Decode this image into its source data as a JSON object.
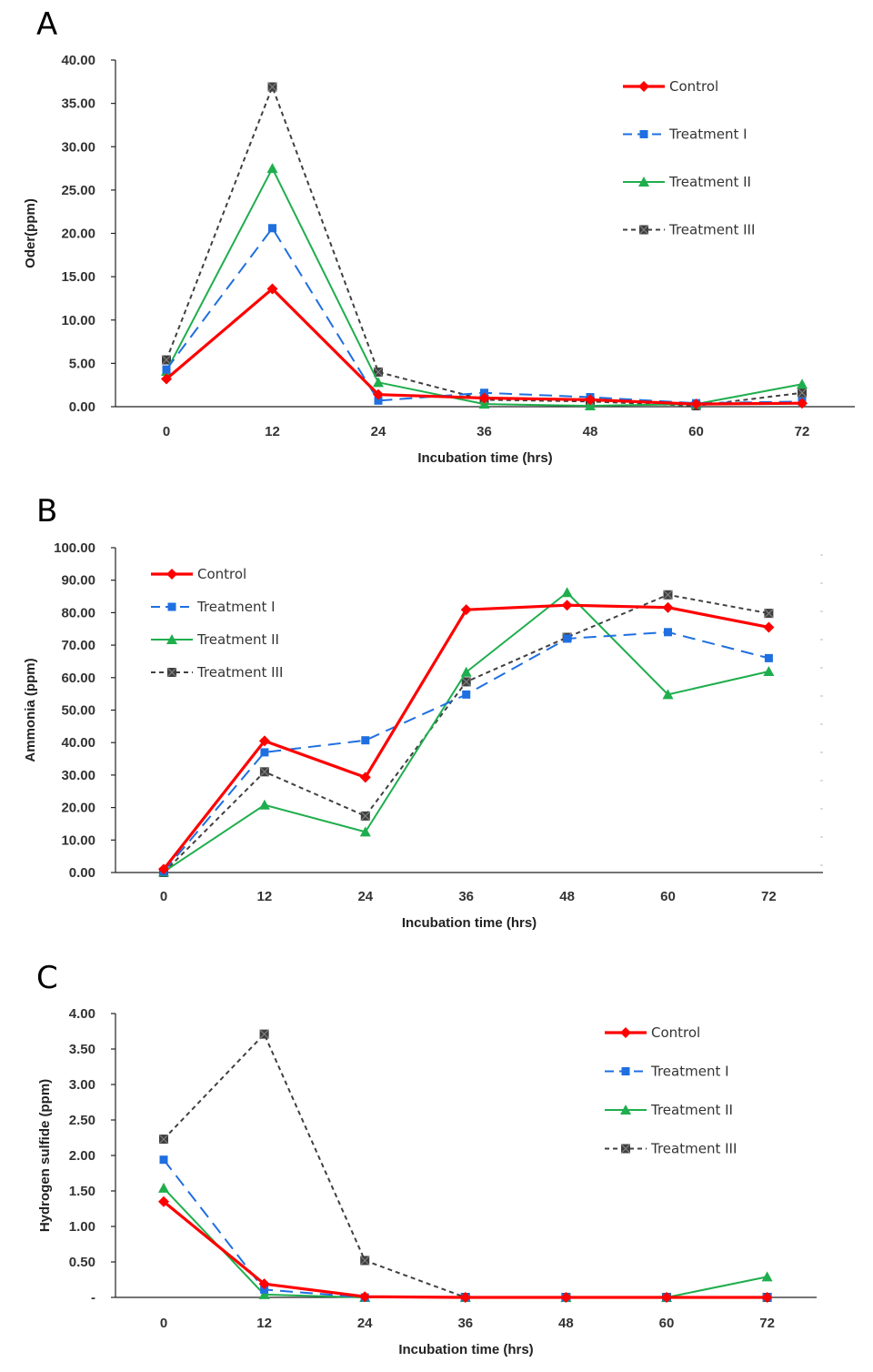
{
  "chart_data": [
    {
      "panel": "A",
      "type": "line",
      "title": "",
      "xlabel": "Incubation time (hrs)",
      "ylabel": "Oder(ppm)",
      "categories": [
        "0",
        "12",
        "24",
        "36",
        "48",
        "60",
        "72"
      ],
      "ylim": [
        0,
        40
      ],
      "yticks": [
        0,
        5,
        10,
        15,
        20,
        25,
        30,
        35,
        40
      ],
      "ytick_labels": [
        "0.00",
        "5.00",
        "10.00",
        "15.00",
        "20.00",
        "25.00",
        "30.00",
        "35.00",
        "40.00"
      ],
      "legend_position": "top-right",
      "series": [
        {
          "name": "Control",
          "values": [
            3.2,
            13.6,
            1.4,
            1.0,
            0.8,
            0.3,
            0.4
          ]
        },
        {
          "name": "Treatment I",
          "values": [
            4.3,
            20.6,
            0.7,
            1.6,
            1.1,
            0.4,
            0.6
          ]
        },
        {
          "name": "Treatment II",
          "values": [
            4.1,
            27.5,
            2.8,
            0.3,
            0.1,
            0.3,
            2.6
          ]
        },
        {
          "name": "Treatment III",
          "values": [
            5.4,
            36.9,
            4.0,
            0.8,
            0.6,
            0.1,
            1.6
          ]
        }
      ]
    },
    {
      "panel": "B",
      "type": "line",
      "title": "",
      "xlabel": "Incubation time (hrs)",
      "ylabel": "Ammonia (ppm)",
      "categories": [
        "0",
        "12",
        "24",
        "36",
        "48",
        "60",
        "72"
      ],
      "ylim": [
        0,
        100
      ],
      "yticks": [
        0,
        10,
        20,
        30,
        40,
        50,
        60,
        70,
        80,
        90,
        100
      ],
      "ytick_labels": [
        "0.00",
        "10.00",
        "20.00",
        "30.00",
        "40.00",
        "50.00",
        "60.00",
        "70.00",
        "80.00",
        "90.00",
        "100.00"
      ],
      "legend_position": "top-left",
      "series": [
        {
          "name": "Control",
          "values": [
            1.0,
            40.5,
            29.3,
            80.9,
            82.3,
            81.6,
            75.5
          ]
        },
        {
          "name": "Treatment I",
          "values": [
            0.3,
            37.0,
            40.7,
            54.8,
            72.0,
            74.0,
            66.0
          ]
        },
        {
          "name": "Treatment II",
          "values": [
            0.2,
            20.8,
            12.5,
            61.7,
            86.2,
            54.8,
            61.9
          ]
        },
        {
          "name": "Treatment III",
          "values": [
            0.0,
            31.0,
            17.4,
            58.7,
            72.4,
            85.5,
            79.8
          ]
        }
      ]
    },
    {
      "panel": "C",
      "type": "line",
      "title": "",
      "xlabel": "Incubation time (hrs)",
      "ylabel": "Hydrogen sulfide (ppm)",
      "categories": [
        "0",
        "12",
        "24",
        "36",
        "48",
        "60",
        "72"
      ],
      "ylim": [
        0,
        4
      ],
      "yticks": [
        0,
        0.5,
        1,
        1.5,
        2,
        2.5,
        3,
        3.5,
        4
      ],
      "ytick_labels": [
        "-",
        "0.50",
        "1.00",
        "1.50",
        "2.00",
        "2.50",
        "3.00",
        "3.50",
        "4.00"
      ],
      "legend_position": "top-right",
      "series": [
        {
          "name": "Control",
          "values": [
            1.35,
            0.19,
            0.01,
            0.0,
            0.0,
            0.0,
            0.0
          ]
        },
        {
          "name": "Treatment I",
          "values": [
            1.94,
            0.11,
            0.0,
            0.0,
            0.0,
            0.0,
            0.0
          ]
        },
        {
          "name": "Treatment II",
          "values": [
            1.54,
            0.04,
            0.0,
            0.0,
            0.0,
            0.0,
            0.29
          ]
        },
        {
          "name": "Treatment III",
          "values": [
            2.23,
            3.71,
            0.52,
            0.0,
            0.0,
            0.0,
            0.0
          ]
        }
      ]
    }
  ],
  "panel_labels": [
    "A",
    "B",
    "C"
  ],
  "series_style": {
    "Control": {
      "color": "#ff0000",
      "marker": "diamond",
      "dash": "solid"
    },
    "Treatment I": {
      "color": "#1f6fe0",
      "marker": "square",
      "dash": "long-dash"
    },
    "Treatment II": {
      "color": "#1fae4d",
      "marker": "triangle",
      "dash": "solid"
    },
    "Treatment III": {
      "color": "#404040",
      "marker": "square-x",
      "dash": "short-dash"
    }
  }
}
